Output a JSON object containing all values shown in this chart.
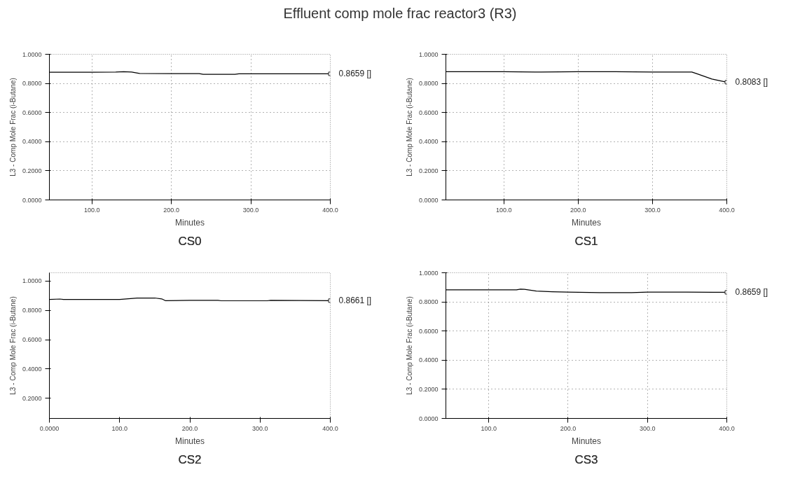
{
  "chart_data": [
    {
      "type": "line",
      "title": "CS0",
      "xlabel": "Minutes",
      "ylabel": "L3 - Comp Mole Frac (i-Butane)",
      "annotations": [
        "Effluent comp mole frac reactor3 (R3)",
        "0.8659 []"
      ],
      "grid": true,
      "color": "#000000",
      "x": [
        46.5,
        100,
        130,
        140,
        150,
        160,
        200,
        235,
        240,
        280,
        285,
        350,
        400
      ],
      "values": [
        0.877,
        0.877,
        0.878,
        0.88,
        0.878,
        0.868,
        0.867,
        0.867,
        0.862,
        0.862,
        0.866,
        0.866,
        0.8659
      ],
      "xlim": [
        46.5,
        400
      ],
      "ylim": [
        0,
        1
      ],
      "xticks": [
        {
          "value": 100,
          "label": "100.0"
        },
        {
          "value": 200,
          "label": "200.0"
        },
        {
          "value": 300,
          "label": "300.0"
        },
        {
          "value": 400,
          "label": "400.0"
        }
      ],
      "yticks": [
        {
          "value": 0,
          "label": "0.0000"
        },
        {
          "value": 0.2,
          "label": "0.2000"
        },
        {
          "value": 0.4,
          "label": "0.4000"
        },
        {
          "value": 0.6,
          "label": "0.6000"
        },
        {
          "value": 0.8,
          "label": "0.8000"
        },
        {
          "value": 1,
          "label": "1.0000"
        }
      ]
    },
    {
      "type": "line",
      "title": "CS1",
      "xlabel": "Minutes",
      "ylabel": "L3 - Comp Mole Frac (i-Butane)",
      "annotations": [
        "0.8083 []"
      ],
      "grid": true,
      "color": "#000000",
      "x": [
        22,
        100,
        150,
        200,
        250,
        300,
        353,
        360,
        380,
        400
      ],
      "values": [
        0.88,
        0.88,
        0.878,
        0.88,
        0.88,
        0.878,
        0.878,
        0.866,
        0.83,
        0.8083
      ],
      "xlim": [
        22,
        400
      ],
      "ylim": [
        0,
        1
      ],
      "xticks": [
        {
          "value": 100,
          "label": "100.0"
        },
        {
          "value": 200,
          "label": "200.0"
        },
        {
          "value": 300,
          "label": "300.0"
        },
        {
          "value": 400,
          "label": "400.0"
        }
      ],
      "yticks": [
        {
          "value": 0,
          "label": "0.0000"
        },
        {
          "value": 0.2,
          "label": "0.2000"
        },
        {
          "value": 0.4,
          "label": "0.4000"
        },
        {
          "value": 0.6,
          "label": "0.6000"
        },
        {
          "value": 0.8,
          "label": "0.8000"
        },
        {
          "value": 1,
          "label": "1.0000"
        }
      ]
    },
    {
      "type": "line",
      "title": "CS2",
      "xlabel": "Minutes",
      "ylabel": "L3 - Comp Mole Frac (i-Butane)",
      "annotations": [
        "0.8661 []"
      ],
      "grid": false,
      "color": "#000000",
      "x": [
        0,
        15,
        20,
        100,
        125,
        150,
        160,
        165,
        200,
        240,
        245,
        310,
        315,
        400
      ],
      "values": [
        0.874,
        0.877,
        0.874,
        0.874,
        0.884,
        0.884,
        0.878,
        0.866,
        0.868,
        0.868,
        0.865,
        0.865,
        0.868,
        0.8661
      ],
      "xlim": [
        0,
        400
      ],
      "ylim": [
        0.063,
        1.056
      ],
      "xticks": [
        {
          "value": 0,
          "label": "0.0000"
        },
        {
          "value": 100,
          "label": "100.0"
        },
        {
          "value": 200,
          "label": "200.0"
        },
        {
          "value": 300,
          "label": "300.0"
        },
        {
          "value": 400,
          "label": "400.0"
        }
      ],
      "yticks": [
        {
          "value": 0.2,
          "label": "0.2000"
        },
        {
          "value": 0.4,
          "label": "0.4000"
        },
        {
          "value": 0.6,
          "label": "0.6000"
        },
        {
          "value": 0.8,
          "label": "0.8000"
        },
        {
          "value": 1,
          "label": "1.0000"
        }
      ]
    },
    {
      "type": "line",
      "title": "CS3",
      "xlabel": "Minutes",
      "ylabel": "L3 - Comp Mole Frac (i-Butane)",
      "annotations": [
        "0.8659 []"
      ],
      "grid": true,
      "color": "#000000",
      "x": [
        46,
        135,
        140,
        145,
        160,
        180,
        200,
        240,
        280,
        300,
        350,
        400
      ],
      "values": [
        0.883,
        0.883,
        0.888,
        0.886,
        0.874,
        0.87,
        0.867,
        0.864,
        0.864,
        0.867,
        0.867,
        0.8659
      ],
      "xlim": [
        46,
        400
      ],
      "ylim": [
        0,
        1
      ],
      "xticks": [
        {
          "value": 100,
          "label": "100.0"
        },
        {
          "value": 200,
          "label": "200.0"
        },
        {
          "value": 300,
          "label": "300.0"
        },
        {
          "value": 400,
          "label": "400.0"
        }
      ],
      "yticks": [
        {
          "value": 0,
          "label": "0.0000"
        },
        {
          "value": 0.2,
          "label": "0.2000"
        },
        {
          "value": 0.4,
          "label": "0.4000"
        },
        {
          "value": 0.6,
          "label": "0.6000"
        },
        {
          "value": 0.8,
          "label": "0.8000"
        },
        {
          "value": 1,
          "label": "1.0000"
        }
      ]
    }
  ]
}
